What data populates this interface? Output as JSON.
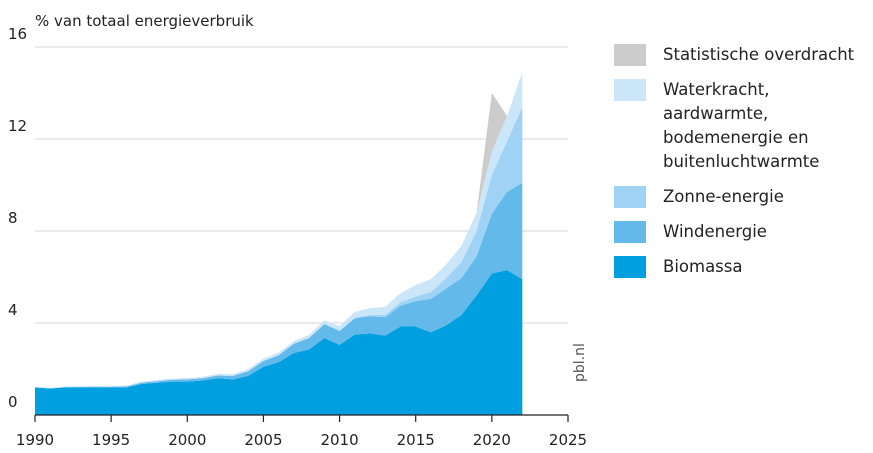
{
  "chart_data": {
    "type": "stacked_area",
    "ylabel": "% van totaal energieverbruik",
    "source": "pbl.nl",
    "x": [
      1990,
      1991,
      1992,
      1993,
      1994,
      1995,
      1996,
      1997,
      1998,
      1999,
      2000,
      2001,
      2002,
      2003,
      2004,
      2005,
      2006,
      2007,
      2008,
      2009,
      2010,
      2011,
      2012,
      2013,
      2014,
      2015,
      2016,
      2017,
      2018,
      2019,
      2020,
      2021,
      2022
    ],
    "series": [
      {
        "name": "Biomassa",
        "color": "#009fe0",
        "values": [
          1.2,
          1.15,
          1.2,
          1.2,
          1.2,
          1.2,
          1.2,
          1.35,
          1.4,
          1.45,
          1.45,
          1.5,
          1.6,
          1.55,
          1.7,
          2.1,
          2.3,
          2.7,
          2.85,
          3.35,
          3.05,
          3.5,
          3.55,
          3.45,
          3.85,
          3.85,
          3.6,
          3.9,
          4.35,
          5.2,
          6.15,
          6.3,
          5.9
        ]
      },
      {
        "name": "Windenergie",
        "color": "#63b9ea",
        "values": [
          0,
          0,
          0.01,
          0.02,
          0.02,
          0.03,
          0.04,
          0.05,
          0.07,
          0.08,
          0.1,
          0.1,
          0.12,
          0.15,
          0.2,
          0.25,
          0.3,
          0.4,
          0.5,
          0.6,
          0.6,
          0.7,
          0.75,
          0.8,
          0.9,
          1.1,
          1.45,
          1.6,
          1.6,
          1.7,
          2.6,
          3.4,
          4.2
        ]
      },
      {
        "name": "Zonne-energie",
        "color": "#9fd2f4",
        "values": [
          0,
          0,
          0,
          0,
          0,
          0,
          0,
          0,
          0,
          0,
          0,
          0,
          0,
          0,
          0,
          0,
          0,
          0,
          0,
          0.01,
          0.02,
          0.03,
          0.05,
          0.1,
          0.15,
          0.2,
          0.3,
          0.45,
          0.7,
          1.1,
          1.7,
          2.2,
          3.3
        ]
      },
      {
        "name": "Waterkracht, aardwarmte, bodemenergie en buitenluchtwarmte",
        "color": "#cbe6f9",
        "values": [
          0.03,
          0.03,
          0.03,
          0.03,
          0.04,
          0.04,
          0.04,
          0.05,
          0.05,
          0.05,
          0.06,
          0.06,
          0.07,
          0.08,
          0.09,
          0.1,
          0.11,
          0.12,
          0.14,
          0.16,
          0.2,
          0.25,
          0.3,
          0.35,
          0.4,
          0.5,
          0.55,
          0.6,
          0.7,
          0.8,
          1.0,
          1.1,
          1.5
        ]
      },
      {
        "name": "Statistische overdracht",
        "color": "#cccccc",
        "values": [
          0,
          0,
          0,
          0,
          0,
          0,
          0,
          0,
          0,
          0,
          0,
          0,
          0,
          0,
          0,
          0,
          0,
          0,
          0,
          0,
          0,
          0,
          0,
          0,
          0,
          0,
          0,
          0,
          0,
          0,
          2.55,
          0,
          0
        ]
      }
    ],
    "xlim": [
      1990,
      2025
    ],
    "xticks": [
      1990,
      1995,
      2000,
      2005,
      2010,
      2015,
      2020,
      2025
    ],
    "ylim": [
      0,
      16
    ],
    "yticks": [
      0,
      4,
      8,
      12,
      16
    ],
    "grid": true
  }
}
